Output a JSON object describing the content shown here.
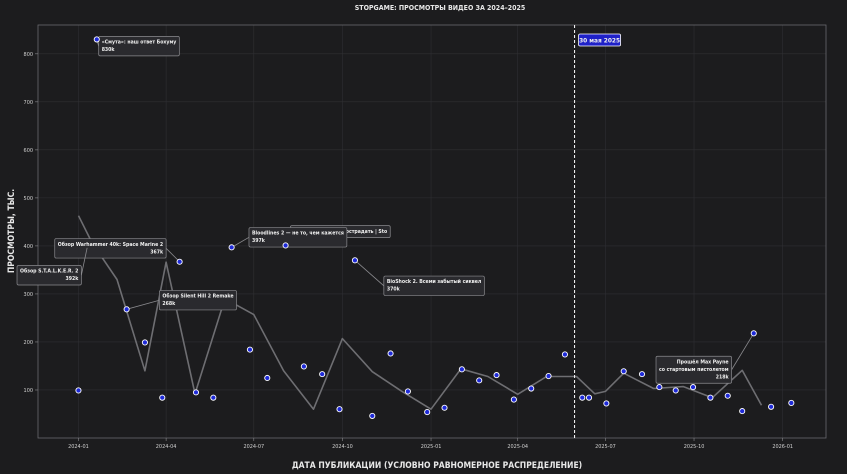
{
  "chart_data": {
    "type": "scatter",
    "title": "STOPGAME: ПРОСМОТРЫ ВИДЕО ЗА 2024–2025",
    "xlabel": "ДАТА ПУБЛИКАЦИИ (УСЛОВНО РАВНОМЕРНОЕ РАСПРЕДЕЛЕНИЕ)",
    "ylabel": "ПРОСМОТРЫ, ТЫС.",
    "xlim": [
      "2023-11-20",
      "2026-02-15"
    ],
    "ylim": [
      0,
      860
    ],
    "x_ticks": [
      "2024-01",
      "2024-04",
      "2024-07",
      "2024-10",
      "2025-01",
      "2025-04",
      "2025-07",
      "2025-10",
      "2026-01"
    ],
    "y_ticks": [
      100,
      200,
      300,
      400,
      500,
      600,
      700,
      800
    ],
    "grid": true,
    "vline": {
      "date": "2025-05-30",
      "label": "30 мая 2025"
    },
    "series": [
      {
        "kind": "points",
        "points": [
          {
            "x": "2024-01-01",
            "y": 99
          },
          {
            "x": "2024-01-20",
            "y": 830
          },
          {
            "x": "2024-02-20",
            "y": 268
          },
          {
            "x": "2024-03-10",
            "y": 199
          },
          {
            "x": "2024-03-28",
            "y": 84
          },
          {
            "x": "2024-04-15",
            "y": 367
          },
          {
            "x": "2024-05-02",
            "y": 95
          },
          {
            "x": "2024-05-20",
            "y": 84
          },
          {
            "x": "2024-06-08",
            "y": 397
          },
          {
            "x": "2024-06-27",
            "y": 184
          },
          {
            "x": "2024-07-15",
            "y": 125
          },
          {
            "x": "2024-08-03",
            "y": 401
          },
          {
            "x": "2024-08-22",
            "y": 149
          },
          {
            "x": "2024-09-10",
            "y": 133
          },
          {
            "x": "2024-09-28",
            "y": 60
          },
          {
            "x": "2024-10-14",
            "y": 370
          },
          {
            "x": "2024-11-01",
            "y": 46
          },
          {
            "x": "2024-11-20",
            "y": 176
          },
          {
            "x": "2024-12-08",
            "y": 97
          },
          {
            "x": "2024-12-28",
            "y": 54
          },
          {
            "x": "2025-01-15",
            "y": 63
          },
          {
            "x": "2025-02-02",
            "y": 143
          },
          {
            "x": "2025-02-20",
            "y": 120
          },
          {
            "x": "2025-03-10",
            "y": 131
          },
          {
            "x": "2025-03-28",
            "y": 80
          },
          {
            "x": "2025-04-15",
            "y": 103
          },
          {
            "x": "2025-05-03",
            "y": 129
          },
          {
            "x": "2025-05-20",
            "y": 174
          },
          {
            "x": "2025-06-07",
            "y": 84
          },
          {
            "x": "2025-06-14",
            "y": 84
          },
          {
            "x": "2025-07-02",
            "y": 72
          },
          {
            "x": "2025-07-20",
            "y": 139
          },
          {
            "x": "2025-08-08",
            "y": 133
          },
          {
            "x": "2025-08-26",
            "y": 106
          },
          {
            "x": "2025-09-12",
            "y": 99
          },
          {
            "x": "2025-09-30",
            "y": 106
          },
          {
            "x": "2025-10-18",
            "y": 84
          },
          {
            "x": "2025-11-05",
            "y": 88
          },
          {
            "x": "2025-11-20",
            "y": 56
          },
          {
            "x": "2025-12-02",
            "y": 218
          },
          {
            "x": "2025-12-20",
            "y": 65
          },
          {
            "x": "2026-01-10",
            "y": 73
          }
        ]
      },
      {
        "kind": "line",
        "points": [
          {
            "x": "2024-01-01",
            "y": 463
          },
          {
            "x": "2024-01-15",
            "y": 407
          },
          {
            "x": "2024-02-10",
            "y": 330
          },
          {
            "x": "2024-03-10",
            "y": 140
          },
          {
            "x": "2024-04-01",
            "y": 366
          },
          {
            "x": "2024-05-01",
            "y": 92
          },
          {
            "x": "2024-06-01",
            "y": 290
          },
          {
            "x": "2024-07-01",
            "y": 257
          },
          {
            "x": "2024-08-01",
            "y": 140
          },
          {
            "x": "2024-09-01",
            "y": 60
          },
          {
            "x": "2024-10-01",
            "y": 207
          },
          {
            "x": "2024-11-01",
            "y": 138
          },
          {
            "x": "2024-12-01",
            "y": 98
          },
          {
            "x": "2025-01-01",
            "y": 60
          },
          {
            "x": "2025-02-01",
            "y": 144
          },
          {
            "x": "2025-03-01",
            "y": 128
          },
          {
            "x": "2025-04-01",
            "y": 91
          },
          {
            "x": "2025-05-01",
            "y": 128
          },
          {
            "x": "2025-06-01",
            "y": 128
          },
          {
            "x": "2025-06-20",
            "y": 92
          },
          {
            "x": "2025-07-01",
            "y": 97
          },
          {
            "x": "2025-07-20",
            "y": 135
          },
          {
            "x": "2025-08-20",
            "y": 103
          },
          {
            "x": "2025-09-20",
            "y": 107
          },
          {
            "x": "2025-10-20",
            "y": 84
          },
          {
            "x": "2025-11-20",
            "y": 141
          },
          {
            "x": "2025-12-10",
            "y": 68
          }
        ]
      }
    ],
    "annotations": [
      {
        "lines": [
          "«Смута»: наш ответ Бохуму",
          "830k"
        ],
        "point": {
          "x": "2024-01-20",
          "y": 830
        },
        "box": {
          "x": "2024-01-22",
          "y": 830
        },
        "align": "left"
      },
      {
        "lines": [
          "Обзор Warhammer 40k: Space Marine 2",
          "367k"
        ],
        "point": {
          "x": "2024-04-15",
          "y": 367
        },
        "box": {
          "x": "2024-04-01",
          "y": 409
        },
        "align": "right"
      },
      {
        "lines": [
          "Обзор S.T.A.L.K.E.R. 2",
          "392k"
        ],
        "point": {
          "x": "2024-01-10",
          "y": 396
        },
        "box": {
          "x": "2024-01-04",
          "y": 353
        },
        "align": "right"
      },
      {
        "lines": [
          "Обзор Silent Hill 2 Remake",
          "268k"
        ],
        "point": {
          "x": "2024-02-20",
          "y": 268
        },
        "box": {
          "x": "2024-03-25",
          "y": 301
        },
        "align": "left"
      },
      {
        "lines": [
          "Пройти игры и не пострадать | Sto"
        ],
        "point": {
          "x": "2024-08-03",
          "y": 401
        },
        "box": {
          "x": "2024-08-08",
          "y": 436
        },
        "align": "left"
      },
      {
        "lines": [
          "Bloodlines 2 — не то, чем кажется",
          "397k"
        ],
        "point": {
          "x": "2024-06-08",
          "y": 397
        },
        "box": {
          "x": "2024-06-26",
          "y": 432
        },
        "align": "left"
      },
      {
        "lines": [
          "BioShock 2. Всеми забытый сиквел",
          "370k"
        ],
        "point": {
          "x": "2024-10-14",
          "y": 370
        },
        "box": {
          "x": "2024-11-13",
          "y": 331
        },
        "align": "left"
      },
      {
        "lines": [
          "Прошёл Max Payne",
          "со стартовым пистолетом",
          "218k"
        ],
        "point": {
          "x": "2025-12-02",
          "y": 218
        },
        "box": {
          "x": "2025-11-09",
          "y": 164
        },
        "align": "right"
      }
    ]
  }
}
